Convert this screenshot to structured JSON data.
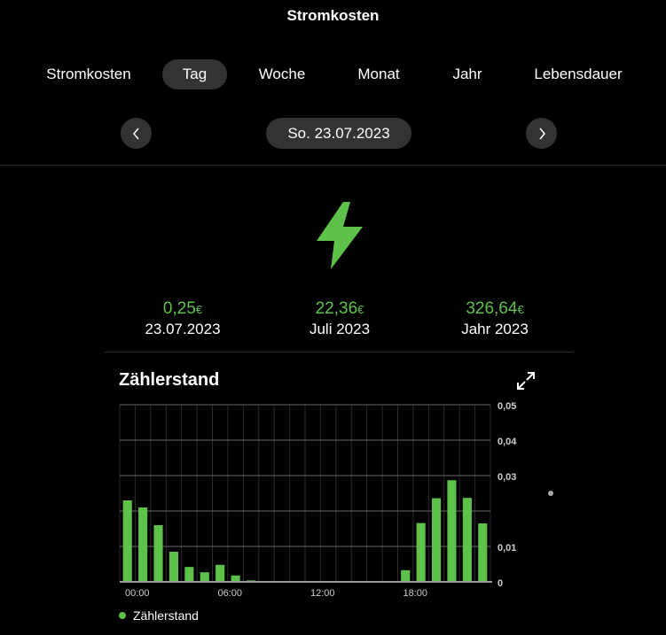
{
  "header": {
    "title": "Stromkosten"
  },
  "tabs": [
    {
      "label": "Stromkosten"
    },
    {
      "label": "Tag"
    },
    {
      "label": "Woche"
    },
    {
      "label": "Monat"
    },
    {
      "label": "Jahr"
    },
    {
      "label": "Lebensdauer"
    }
  ],
  "active_tab": "Tag",
  "date_nav": {
    "current": "So. 23.07.2023",
    "prev_icon": "chevron-left-icon",
    "next_icon": "chevron-right-icon"
  },
  "hero_icon": "lightning-bolt-icon",
  "accent_color": "#5ec24a",
  "stats": [
    {
      "value": "0,25",
      "currency": "€",
      "label": "23.07.2023"
    },
    {
      "value": "22,36",
      "currency": "€",
      "label": "Juli 2023"
    },
    {
      "value": "326,64",
      "currency": "€",
      "label": "Jahr 2023"
    }
  ],
  "chart_card": {
    "title": "Zählerstand",
    "expand_icon": "expand-icon"
  },
  "chart_data": {
    "type": "bar",
    "x_tick_labels": [
      "00:00",
      "06:00",
      "12:00",
      "18:00"
    ],
    "y_tick_labels": [
      "0,05",
      "0,04",
      "0,03",
      "0,01",
      "0"
    ],
    "ylim": [
      0,
      0.05
    ],
    "grid": true,
    "legend": "bottom-left",
    "series": [
      {
        "name": "Zählerstand",
        "color": "#5ec24a",
        "values": [
          0.023,
          0.021,
          0.016,
          0.0085,
          0.0042,
          0.0027,
          0.0048,
          0.0018,
          0.0004,
          0,
          0,
          0,
          0,
          0,
          0,
          0,
          0,
          0,
          0.0033,
          0.0166,
          0.0236,
          0.0287,
          0.0237,
          0.0165
        ]
      }
    ]
  }
}
